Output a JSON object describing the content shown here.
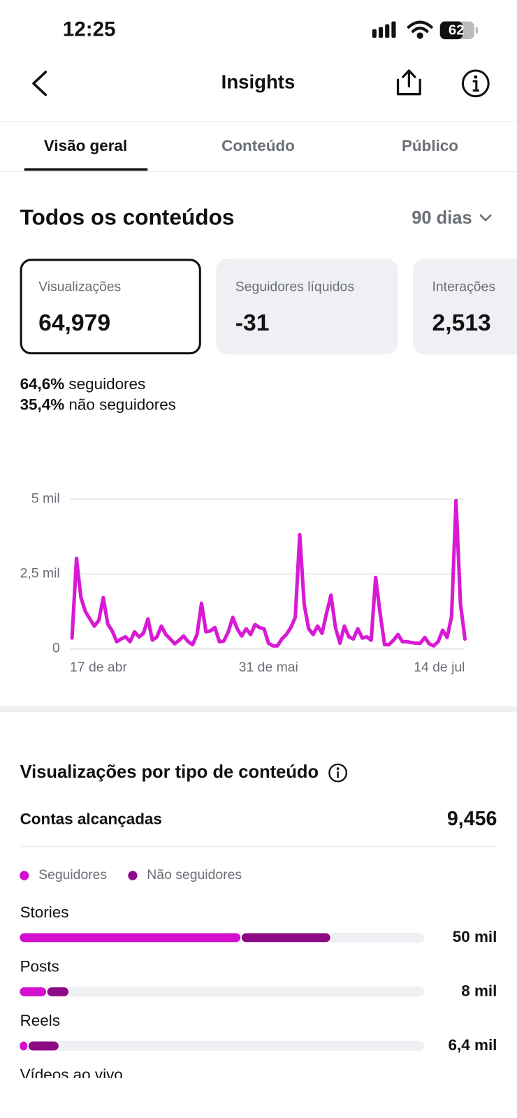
{
  "status_bar": {
    "time": "12:25",
    "battery": "62"
  },
  "header": {
    "title": "Insights"
  },
  "tabs": [
    "Visão geral",
    "Conteúdo",
    "Público"
  ],
  "section": {
    "title": "Todos os conteúdos",
    "period": "90 dias"
  },
  "cards": [
    {
      "label": "Visualizações",
      "value": "64,979"
    },
    {
      "label": "Seguidores líquidos",
      "value": "-31"
    },
    {
      "label": "Interações",
      "value": "2,513"
    }
  ],
  "breakdown": [
    {
      "percent": "64,6%",
      "label": "seguidores"
    },
    {
      "percent": "35,4%",
      "label": "não seguidores"
    }
  ],
  "reach": {
    "label": "Contas alcançadas",
    "value": "9,456"
  },
  "chart_data": [
    {
      "type": "line",
      "color": "#d81ad4",
      "grid": true,
      "categories": [
        "17 de abr",
        null,
        null,
        null,
        null,
        null,
        null,
        null,
        null,
        null,
        null,
        null,
        null,
        null,
        null,
        null,
        null,
        null,
        null,
        null,
        null,
        null,
        null,
        null,
        null,
        null,
        null,
        null,
        null,
        null,
        null,
        null,
        null,
        null,
        null,
        null,
        null,
        null,
        null,
        null,
        null,
        null,
        null,
        null,
        "31 de mai",
        null,
        null,
        null,
        null,
        null,
        null,
        null,
        null,
        null,
        null,
        null,
        null,
        null,
        null,
        null,
        null,
        null,
        null,
        null,
        null,
        null,
        null,
        null,
        null,
        null,
        null,
        null,
        null,
        null,
        null,
        null,
        null,
        null,
        null,
        null,
        null,
        null,
        null,
        null,
        null,
        null,
        null,
        null,
        "14 de jul"
      ],
      "values": [
        360,
        3020,
        1710,
        1240,
        1000,
        760,
        950,
        1710,
        830,
        600,
        240,
        330,
        400,
        240,
        570,
        400,
        520,
        1000,
        290,
        400,
        760,
        480,
        330,
        170,
        290,
        430,
        240,
        140,
        480,
        1520,
        570,
        600,
        710,
        240,
        260,
        570,
        1050,
        670,
        430,
        670,
        480,
        810,
        710,
        670,
        190,
        100,
        100,
        330,
        480,
        710,
        1050,
        3810,
        1480,
        670,
        480,
        760,
        520,
        1190,
        1790,
        710,
        190,
        760,
        400,
        330,
        670,
        360,
        400,
        290,
        2380,
        1190,
        140,
        140,
        290,
        480,
        240,
        240,
        210,
        190,
        190,
        380,
        170,
        100,
        240,
        620,
        380,
        1070,
        4950,
        1500,
        330
      ],
      "ylim": [
        0,
        5000
      ],
      "yticks": [
        0,
        {
          "value": 2500,
          "label": "2,5 mil"
        },
        {
          "value": 5000,
          "label": "5 mil"
        }
      ]
    },
    {
      "type": "bar",
      "orientation": "horizontal",
      "stacked": true,
      "title": "Visualizações por tipo de conteúdo",
      "categories": [
        "Stories",
        "Posts",
        "Reels",
        "Vídeos ao vivo"
      ],
      "series": [
        {
          "name": "Seguidores",
          "color": "#d40fce",
          "values": [
            35600,
            4400,
            1400,
            null
          ]
        },
        {
          "name": "Não seguidores",
          "color": "#8d0a86",
          "values": [
            14400,
            3600,
            5000,
            null
          ]
        }
      ],
      "total_labels": [
        "50 mil",
        "8 mil",
        "6,4 mil",
        null
      ],
      "xlim": [
        0,
        65000
      ]
    }
  ]
}
